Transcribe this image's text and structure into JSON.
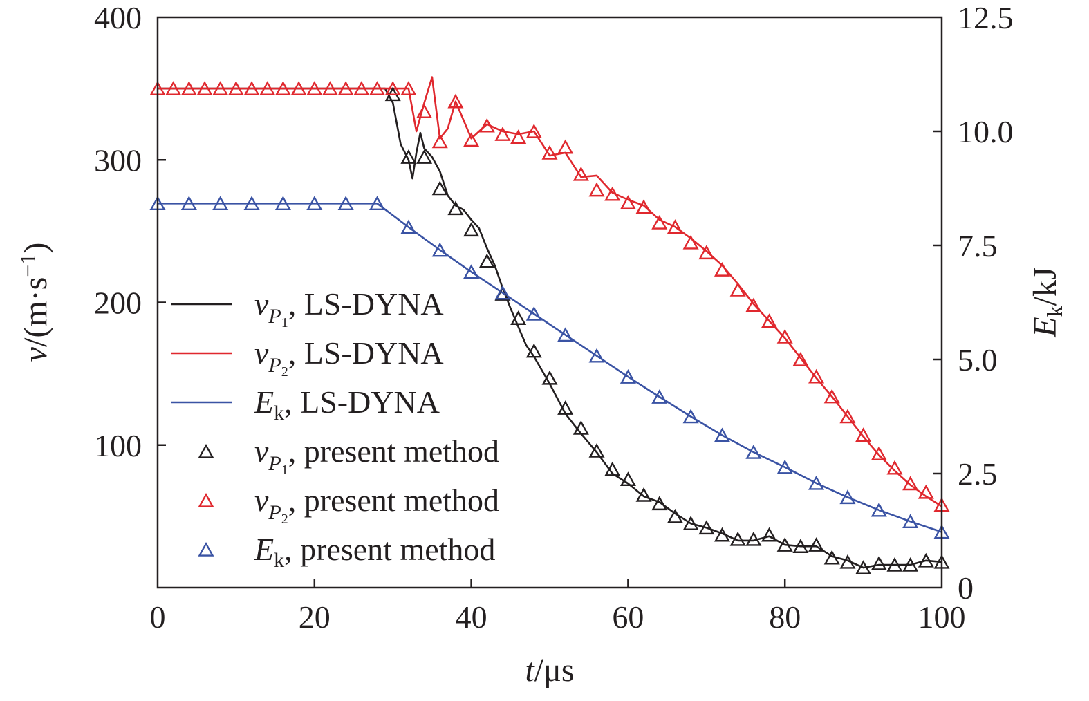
{
  "chart_data": {
    "type": "line",
    "xlabel": {
      "italic": "t",
      "rest": "/μs"
    },
    "ylabel_left": {
      "italic": "v",
      "rest": "/(m·s",
      "sup": "−1",
      "close": ")"
    },
    "ylabel_right": {
      "italic": "E",
      "sub": "k",
      "rest": "/kJ"
    },
    "xlim": [
      0,
      100
    ],
    "ylim_left": [
      0,
      400
    ],
    "ylim_right": [
      0,
      12.5
    ],
    "xticks": [
      "0",
      "20",
      "40",
      "60",
      "80",
      "100"
    ],
    "yticks_left": [
      "100",
      "200",
      "300",
      "400"
    ],
    "yticks_right": [
      "0",
      "2.5",
      "5.0",
      "7.5",
      "10.0",
      "12.5"
    ],
    "grid": false,
    "legend_position": "center-left",
    "colors": {
      "vP1": "#231f20",
      "vP2": "#e0282e",
      "Ek": "#3a53a4"
    },
    "legend": [
      {
        "sym": "v",
        "sub": "P",
        "subsub": "1",
        "label": ", LS-DYNA",
        "kind": "line",
        "color_key": "vP1"
      },
      {
        "sym": "v",
        "sub": "P",
        "subsub": "2",
        "label": ", LS-DYNA",
        "kind": "line",
        "color_key": "vP2"
      },
      {
        "sym": "E",
        "sub": "k",
        "subsub": "",
        "label": ", LS-DYNA",
        "kind": "line",
        "color_key": "Ek"
      },
      {
        "sym": "v",
        "sub": "P",
        "subsub": "1",
        "label": ", present method",
        "kind": "marker",
        "color_key": "vP1"
      },
      {
        "sym": "v",
        "sub": "P",
        "subsub": "2",
        "label": ", present method",
        "kind": "marker",
        "color_key": "vP2"
      },
      {
        "sym": "E",
        "sub": "k",
        "subsub": "",
        "label": ", present method",
        "kind": "marker",
        "color_key": "Ek"
      }
    ],
    "series": [
      {
        "name": "vP1, LS-DYNA",
        "color_key": "vP1",
        "axis": "left",
        "kind": "line",
        "x": [
          0,
          29,
          30,
          31,
          32,
          32.5,
          33,
          33.5,
          34,
          35,
          36,
          37,
          38,
          39,
          40,
          41,
          42,
          43,
          44,
          45,
          46,
          47,
          48,
          50,
          52,
          54,
          56,
          58,
          60,
          62,
          64,
          66,
          68,
          70,
          72,
          74,
          76,
          78,
          80,
          82,
          84,
          86,
          88,
          90,
          92,
          94,
          96,
          98,
          100
        ],
        "y": [
          350,
          350,
          340,
          311,
          300,
          287,
          305,
          319,
          308,
          302,
          292,
          275,
          268,
          265,
          258,
          252,
          238,
          226,
          210,
          196,
          183,
          170,
          162,
          143,
          122,
          108,
          95,
          80,
          73,
          64,
          60,
          52,
          45,
          42,
          38,
          33,
          33,
          36,
          30,
          29,
          29,
          22,
          19,
          14,
          16,
          16,
          16,
          19,
          18
        ]
      },
      {
        "name": "vP2, LS-DYNA",
        "color_key": "vP2",
        "axis": "left",
        "kind": "line",
        "x": [
          0,
          32,
          33,
          34,
          35,
          36,
          37,
          38,
          39,
          40,
          41,
          42,
          44,
          46,
          48,
          50,
          52,
          54,
          56,
          58,
          60,
          62,
          64,
          66,
          68,
          70,
          72,
          74,
          76,
          78,
          80,
          82,
          84,
          86,
          88,
          90,
          92,
          94,
          96,
          98,
          100
        ],
        "y": [
          350,
          350,
          320,
          340,
          358,
          315,
          322,
          341,
          328,
          315,
          320,
          325,
          320,
          318,
          320,
          303,
          305,
          288,
          289,
          277,
          272,
          268,
          258,
          253,
          245,
          236,
          226,
          213,
          199,
          187,
          175,
          161,
          147,
          134,
          120,
          106,
          93,
          82,
          72,
          64,
          57
        ]
      },
      {
        "name": "Ek, LS-DYNA",
        "color_key": "Ek",
        "axis": "right",
        "kind": "line",
        "x": [
          0,
          28,
          32,
          36,
          40,
          44,
          48,
          52,
          56,
          60,
          64,
          68,
          72,
          76,
          80,
          84,
          88,
          92,
          96,
          100
        ],
        "y": [
          8.42,
          8.42,
          7.9,
          7.4,
          6.92,
          6.46,
          6.0,
          5.54,
          5.08,
          4.62,
          4.18,
          3.75,
          3.34,
          2.97,
          2.64,
          2.29,
          1.98,
          1.7,
          1.45,
          1.22
        ]
      },
      {
        "name": "vP1, present method",
        "color_key": "vP1",
        "axis": "left",
        "kind": "marker",
        "x": [
          30,
          32,
          34,
          36,
          38,
          40,
          42,
          44,
          46,
          48,
          50,
          52,
          54,
          56,
          58,
          60,
          62,
          64,
          66,
          68,
          70,
          72,
          74,
          76,
          78,
          80,
          82,
          84,
          86,
          88,
          90,
          92,
          94,
          96,
          98,
          100
        ],
        "y": [
          346,
          302,
          302,
          280,
          266,
          251,
          229,
          206,
          189,
          166,
          147,
          126,
          112,
          96,
          83,
          76,
          65,
          59,
          50,
          45,
          42,
          37,
          34,
          34,
          37,
          30,
          29,
          30,
          21,
          18,
          14,
          17,
          16,
          16,
          19,
          18
        ]
      },
      {
        "name": "vP2, present method",
        "color_key": "vP2",
        "axis": "left",
        "kind": "marker",
        "x": [
          0,
          2,
          4,
          6,
          8,
          10,
          12,
          14,
          16,
          18,
          20,
          22,
          24,
          26,
          28,
          30,
          32,
          34,
          36,
          38,
          40,
          42,
          44,
          46,
          48,
          50,
          52,
          54,
          56,
          58,
          60,
          62,
          64,
          66,
          68,
          70,
          72,
          74,
          76,
          78,
          80,
          82,
          84,
          86,
          88,
          90,
          92,
          94,
          96,
          98,
          100
        ],
        "y": [
          350,
          350,
          350,
          350,
          350,
          350,
          350,
          350,
          350,
          350,
          350,
          350,
          350,
          350,
          350,
          350,
          350,
          334,
          313,
          341,
          314,
          324,
          318,
          316,
          320,
          305,
          309,
          290,
          279,
          276,
          270,
          267,
          256,
          253,
          242,
          235,
          223,
          209,
          198,
          187,
          176,
          160,
          148,
          134,
          120,
          107,
          94,
          84,
          73,
          67,
          58
        ]
      },
      {
        "name": "Ek, present method",
        "color_key": "Ek",
        "axis": "right",
        "kind": "marker",
        "x": [
          0,
          4,
          8,
          12,
          16,
          20,
          24,
          28,
          32,
          36,
          40,
          44,
          48,
          52,
          56,
          60,
          64,
          68,
          72,
          76,
          80,
          84,
          88,
          92,
          96,
          100
        ],
        "y": [
          8.42,
          8.42,
          8.42,
          8.42,
          8.42,
          8.42,
          8.42,
          8.42,
          7.9,
          7.4,
          6.92,
          6.46,
          6.0,
          5.54,
          5.08,
          4.62,
          4.18,
          3.75,
          3.34,
          2.97,
          2.64,
          2.29,
          1.98,
          1.7,
          1.45,
          1.22
        ]
      }
    ]
  }
}
